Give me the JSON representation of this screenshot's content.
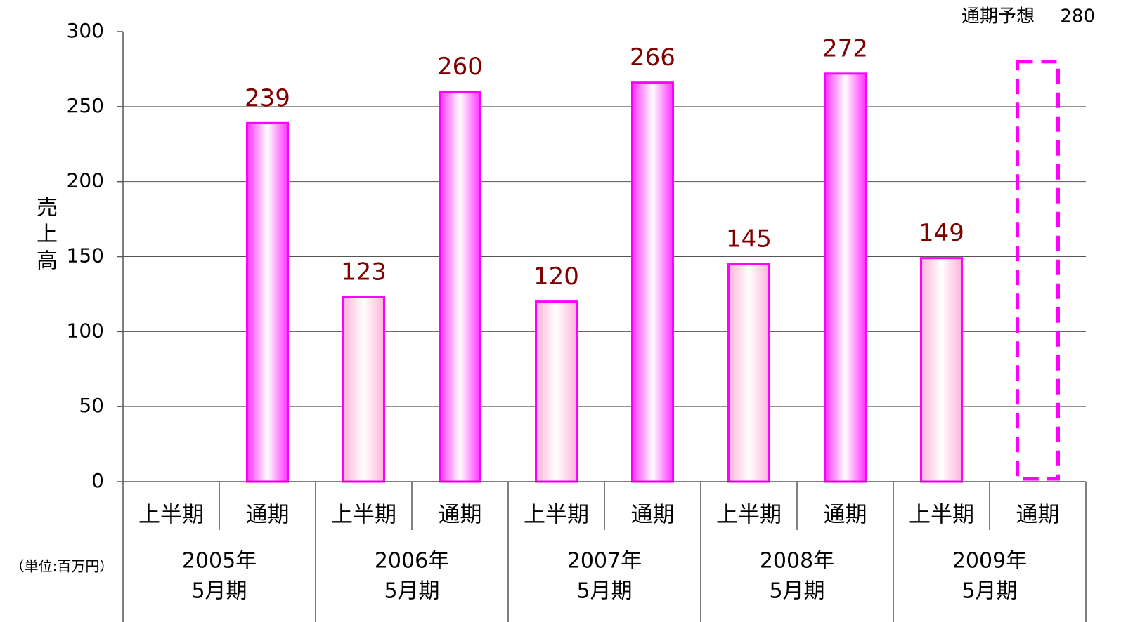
{
  "chart_data": {
    "type": "bar",
    "y_axis_label": "売上高",
    "unit_note": "（単位:百万円）",
    "categories": [
      "上半期",
      "通期",
      "上半期",
      "通期",
      "上半期",
      "通期",
      "上半期",
      "通期",
      "上半期",
      "通期"
    ],
    "groups": [
      {
        "year": "2005年",
        "period": "5月期"
      },
      {
        "year": "2006年",
        "period": "5月期"
      },
      {
        "year": "2007年",
        "period": "5月期"
      },
      {
        "year": "2008年",
        "period": "5月期"
      },
      {
        "year": "2009年",
        "period": "5月期"
      }
    ],
    "values": [
      null,
      239,
      123,
      260,
      120,
      266,
      145,
      272,
      149,
      null
    ],
    "forecast": {
      "label": "通期予想",
      "value": 280
    },
    "color": "#ff00ff",
    "label_color": "#800000",
    "ylim": [
      0,
      300
    ],
    "yticks": [
      0,
      50,
      100,
      150,
      200,
      250,
      300
    ],
    "grid": true
  }
}
